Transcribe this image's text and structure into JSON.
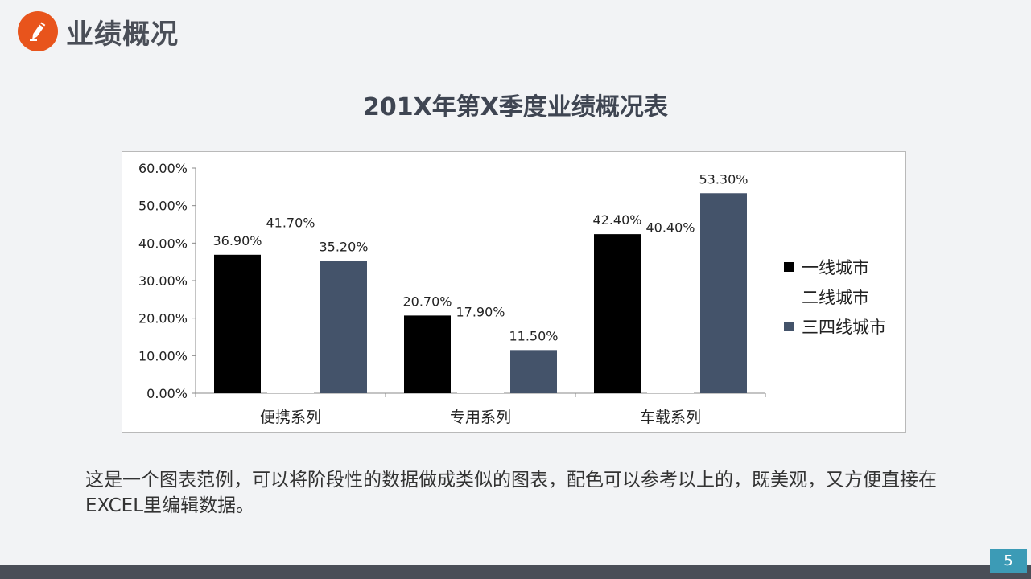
{
  "header": {
    "title": "业绩概况",
    "icon": "pencil-icon"
  },
  "description": "这是一个图表范例，可以将阶段性的数据做成类似的图表，配色可以参考以上的，既美观，又方便直接在EXCEL里编辑数据。",
  "page_number": "5",
  "colors": {
    "accent": "#e8541c",
    "series1": "#000000",
    "series2": "#ffffff",
    "series3": "#44536a",
    "footer": "#4a4e57",
    "page_badge": "#3c9bb6"
  },
  "chart_data": {
    "type": "bar",
    "title": "201X年第X季度业绩概况表",
    "categories": [
      "便携系列",
      "专用系列",
      "车载系列"
    ],
    "series": [
      {
        "name": "一线城市",
        "values": [
          36.9,
          20.7,
          42.4
        ],
        "labels": [
          "36.90%",
          "20.70%",
          "42.40%"
        ],
        "color": "#000000"
      },
      {
        "name": "二线城市",
        "values": [
          41.7,
          17.9,
          40.4
        ],
        "labels": [
          "41.70%",
          "17.90%",
          "40.40%"
        ],
        "color": "#ffffff"
      },
      {
        "name": "三四线城市",
        "values": [
          35.2,
          11.5,
          53.3
        ],
        "labels": [
          "35.20%",
          "11.50%",
          "53.30%"
        ],
        "color": "#44536a"
      }
    ],
    "ylim": [
      0,
      60
    ],
    "yticks": [
      "0.00%",
      "10.00%",
      "20.00%",
      "30.00%",
      "40.00%",
      "50.00%",
      "60.00%"
    ],
    "legend_position": "right",
    "grid": false
  }
}
